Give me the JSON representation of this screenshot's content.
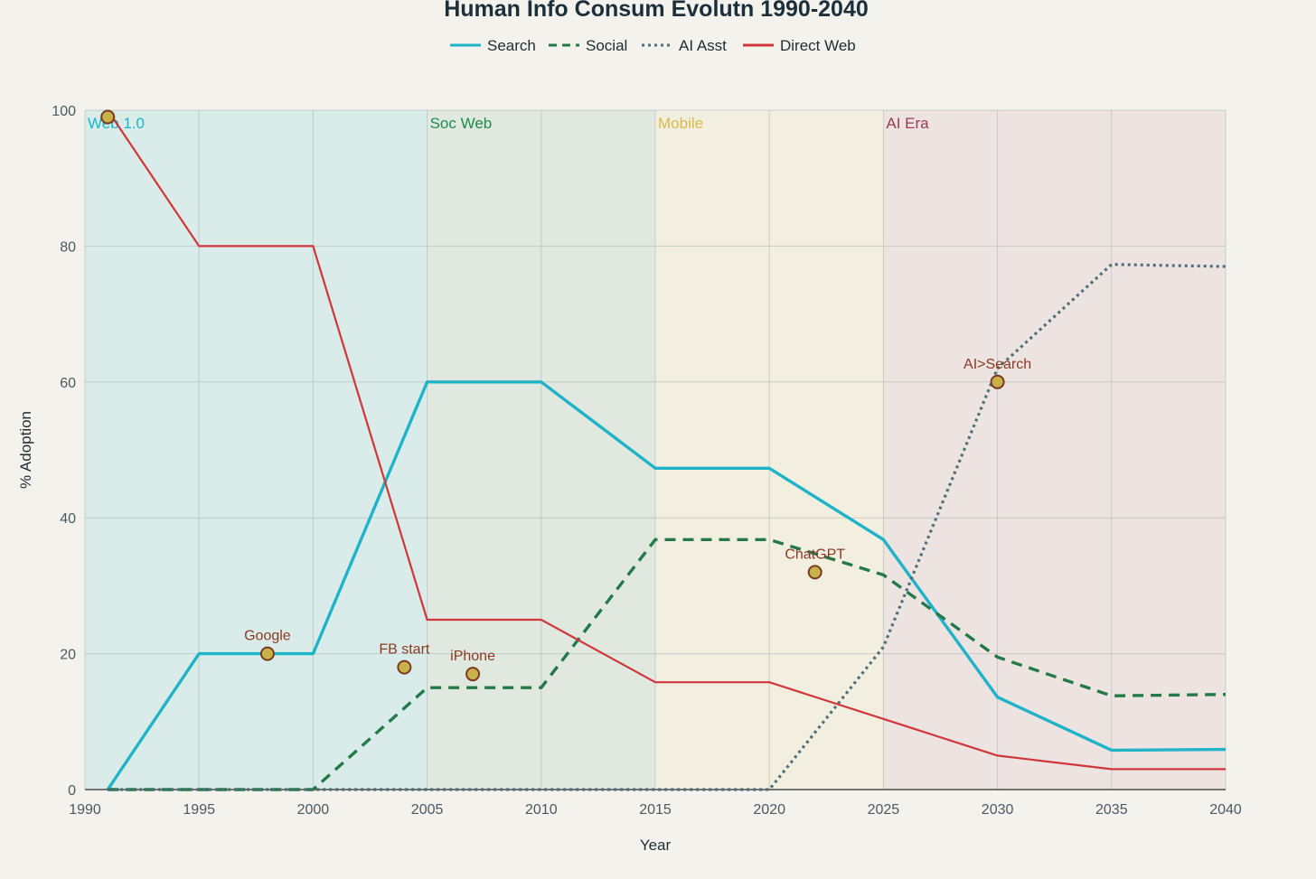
{
  "chart_data": {
    "type": "line",
    "title": "Human Info Consum Evolutn 1990-2040",
    "xlabel": "Year",
    "ylabel": "% Adoption",
    "xlim": [
      1990,
      2040
    ],
    "ylim": [
      0,
      100
    ],
    "x_ticks": [
      "1990",
      "1995",
      "2000",
      "2005",
      "2010",
      "2015",
      "2020",
      "2025",
      "2030",
      "2035",
      "2040"
    ],
    "y_ticks": [
      "0",
      "20",
      "40",
      "60",
      "80",
      "100"
    ],
    "grid": true,
    "legend_position": "top-center",
    "eras": [
      {
        "label": "Web 1.0",
        "start": 1990,
        "end": 2005,
        "color": "#18b6c9",
        "fill": "#d9ece9"
      },
      {
        "label": "Soc Web",
        "start": 2005,
        "end": 2015,
        "color": "#1e8a4c",
        "fill": "#e0e8df"
      },
      {
        "label": "Mobile",
        "start": 2015,
        "end": 2025,
        "color": "#d8b94a",
        "fill": "#f2efe0"
      },
      {
        "label": "AI Era",
        "start": 2025,
        "end": 2040,
        "color": "#9b3a4d",
        "fill": "#ede3e1"
      }
    ],
    "series": [
      {
        "name": "Search",
        "color": "#1fb3c8",
        "dash": "solid",
        "x": [
          1991,
          1995,
          2000,
          2005,
          2010,
          2015,
          2020,
          2025,
          2030,
          2035,
          2040
        ],
        "y": [
          0,
          20,
          20,
          60,
          60,
          47.3,
          47.3,
          36.8,
          13.6,
          5.8,
          5.9
        ]
      },
      {
        "name": "Social",
        "color": "#237a48",
        "dash": "dashed",
        "x": [
          1991,
          1995,
          2000,
          2005,
          2010,
          2015,
          2020,
          2025,
          2030,
          2035,
          2040
        ],
        "y": [
          0,
          0,
          0,
          15,
          15,
          36.8,
          36.8,
          31.6,
          19.5,
          13.8,
          14
        ]
      },
      {
        "name": "AI Asst",
        "color": "#4f6e78",
        "dash": "dotted",
        "x": [
          1991,
          1995,
          2000,
          2005,
          2010,
          2015,
          2020,
          2025,
          2030,
          2035,
          2040
        ],
        "y": [
          0,
          0,
          0,
          0,
          0,
          0,
          0,
          21,
          62,
          77.3,
          77
        ]
      },
      {
        "name": "Direct Web",
        "color": "#d0373a",
        "dash": "solid",
        "x": [
          1991,
          1995,
          2000,
          2005,
          2010,
          2015,
          2020,
          2025,
          2030,
          2035,
          2040
        ],
        "y": [
          100,
          80,
          80,
          25,
          25,
          15.8,
          15.8,
          10.4,
          5,
          3,
          3
        ]
      }
    ],
    "annotations": [
      {
        "label": "",
        "x": 1991,
        "y": 99
      },
      {
        "label": "Google",
        "x": 1998,
        "y": 20
      },
      {
        "label": "FB start",
        "x": 2004,
        "y": 18
      },
      {
        "label": "iPhone",
        "x": 2007,
        "y": 17
      },
      {
        "label": "ChatGPT",
        "x": 2022,
        "y": 32
      },
      {
        "label": "AI>Search",
        "x": 2030,
        "y": 60
      }
    ]
  }
}
